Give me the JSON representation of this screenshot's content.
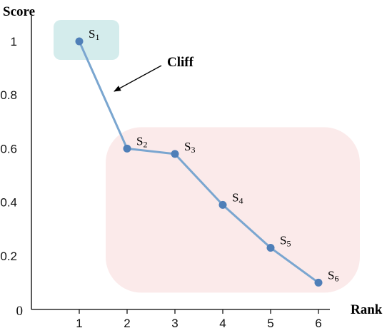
{
  "chart_data": {
    "type": "line",
    "xlabel": "Rank",
    "ylabel": "Score",
    "x": [
      1,
      2,
      3,
      4,
      5,
      6
    ],
    "y": [
      1.0,
      0.6,
      0.58,
      0.39,
      0.23,
      0.1
    ],
    "point_labels": [
      "S1",
      "S2",
      "S3",
      "S4",
      "S5",
      "S6"
    ],
    "xticks": [
      "1",
      "2",
      "3",
      "4",
      "5",
      "6"
    ],
    "yticks": [
      "0",
      "0.2",
      "0.4",
      "0.6",
      "0.8",
      "1"
    ],
    "xlim": [
      0,
      6.3
    ],
    "ylim": [
      0,
      1.08
    ],
    "grid": false,
    "line_color": "#7aa6d0",
    "marker_color": "#4f7fb8",
    "annotations": [
      {
        "text": "Cliff"
      }
    ],
    "highlight_regions": [
      {
        "covers": [
          "S1"
        ],
        "color": "#d4ecec"
      },
      {
        "covers": [
          "S2",
          "S3",
          "S4",
          "S5",
          "S6"
        ],
        "color": "#fbeaea"
      }
    ]
  }
}
